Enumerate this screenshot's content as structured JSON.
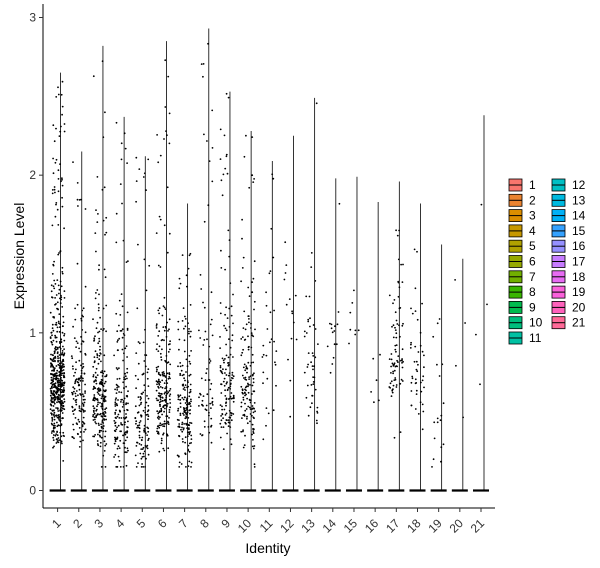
{
  "chart_data": {
    "type": "scatter",
    "subtype": "violin-jitter",
    "xlabel": "Identity",
    "ylabel": "Expression Level",
    "ylim": [
      0,
      3
    ],
    "yticks": [
      "0",
      "1",
      "2",
      "3"
    ],
    "categories": [
      "1",
      "2",
      "3",
      "4",
      "5",
      "6",
      "7",
      "8",
      "9",
      "10",
      "11",
      "12",
      "13",
      "14",
      "15",
      "16",
      "17",
      "18",
      "19",
      "20",
      "21"
    ],
    "max_values": [
      2.65,
      2.15,
      2.82,
      2.37,
      2.12,
      2.85,
      1.82,
      2.93,
      2.53,
      2.28,
      2.09,
      2.25,
      2.49,
      1.98,
      1.99,
      1.83,
      1.96,
      1.82,
      1.56,
      1.47,
      2.38
    ],
    "legend_position": "right",
    "legend_colors": [
      "#F8766D",
      "#EA8331",
      "#DB8E00",
      "#C79800",
      "#B0A200",
      "#96A900",
      "#72B000",
      "#39B600",
      "#00BB4E",
      "#00BF7D",
      "#00C1A3",
      "#00BFC4",
      "#00BAE0",
      "#00B0F6",
      "#35A2FF",
      "#9590FF",
      "#C77CFF",
      "#E76BF3",
      "#FA62DB",
      "#FF62BC",
      "#FF6A98"
    ],
    "grid": false
  }
}
